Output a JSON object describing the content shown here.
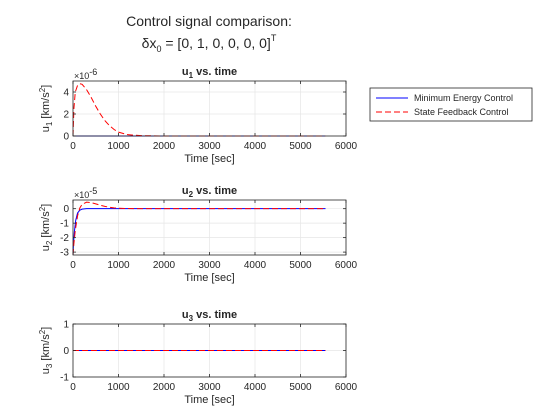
{
  "figure": {
    "title_line1": "Control signal comparison:",
    "title_line2_prefix": "δx",
    "title_line2_sub": "0",
    "title_line2_value": " = [0, 1, 0, 0, 0, 0]",
    "title_line2_sup": "T"
  },
  "legend": {
    "placement": "outside-right",
    "entries": [
      {
        "label": "Minimum Energy Control",
        "color": "#0000ff",
        "dash": "solid"
      },
      {
        "label": "State Feedback Control",
        "color": "#ff0000",
        "dash": "dashed"
      }
    ]
  },
  "chart_data": [
    {
      "type": "line",
      "title_main": "u",
      "title_sub": "1",
      "title_rest": " vs. time",
      "xlabel": "Time [sec]",
      "ylabel_main": "u",
      "ylabel_sub": "1",
      "ylabel_rest": " [km/s",
      "ylabel_sup": "2",
      "ylabel_end": "]",
      "exponent_label": "×10",
      "exponent_power": "-6",
      "xlim": [
        0,
        6000
      ],
      "ylim": [
        0,
        5e-06
      ],
      "xticks": [
        0,
        1000,
        2000,
        3000,
        4000,
        5000,
        6000
      ],
      "yticks": [
        0,
        2e-06,
        4e-06
      ],
      "ytick_labels": [
        "0",
        "2",
        "4"
      ],
      "grid": true,
      "series": [
        {
          "name": "Minimum Energy Control",
          "x": [
            0,
            100,
            500,
            1000,
            2000,
            3000,
            4000,
            5000,
            5550
          ],
          "y": [
            0,
            0,
            0,
            0,
            0,
            0,
            0,
            0,
            0
          ]
        },
        {
          "name": "State Feedback Control",
          "x": [
            0,
            20,
            50,
            100,
            150,
            200,
            300,
            400,
            500,
            600,
            700,
            800,
            900,
            1000,
            1200,
            1500,
            2000,
            3000,
            4000,
            5000,
            5550
          ],
          "y": [
            0,
            2.5e-06,
            4e-06,
            4.6e-06,
            4.75e-06,
            4.7e-06,
            4.2e-06,
            3.5e-06,
            2.7e-06,
            2e-06,
            1.4e-06,
            9.5e-07,
            6e-07,
            3.5e-07,
            1.2e-07,
            3e-08,
            0,
            0,
            0,
            0,
            0
          ]
        }
      ]
    },
    {
      "type": "line",
      "title_main": "u",
      "title_sub": "2",
      "title_rest": " vs. time",
      "xlabel": "Time [sec]",
      "ylabel_main": "u",
      "ylabel_sub": "2",
      "ylabel_rest": " [km/s",
      "ylabel_sup": "2",
      "ylabel_end": "]",
      "exponent_label": "×10",
      "exponent_power": "-5",
      "xlim": [
        0,
        6000
      ],
      "ylim": [
        -3.2e-05,
        6e-06
      ],
      "xticks": [
        0,
        1000,
        2000,
        3000,
        4000,
        5000,
        6000
      ],
      "yticks": [
        -3e-05,
        -2e-05,
        -1e-05,
        0
      ],
      "ytick_labels": [
        "-3",
        "-2",
        "-1",
        "0"
      ],
      "grid": true,
      "series": [
        {
          "name": "Minimum Energy Control",
          "x": [
            0,
            10,
            30,
            60,
            100,
            150,
            200,
            300,
            500,
            1000,
            2000,
            3000,
            4000,
            5000,
            5550
          ],
          "y": [
            -3.2e-05,
            -2.5e-05,
            -1.6e-05,
            -8e-06,
            -3e-06,
            -1e-06,
            -3e-07,
            0,
            0,
            0,
            0,
            0,
            0,
            0,
            0
          ]
        },
        {
          "name": "State Feedback Control",
          "x": [
            0,
            20,
            50,
            100,
            150,
            200,
            300,
            400,
            500,
            600,
            700,
            800,
            900,
            1000,
            1200,
            1500,
            2000,
            3000,
            4000,
            5000,
            5550
          ],
          "y": [
            -3.2e-05,
            -2.4e-05,
            -1.5e-05,
            -5e-06,
            5e-07,
            3e-06,
            4.5e-06,
            4.2e-06,
            3.3e-06,
            2.4e-06,
            1.6e-06,
            1e-06,
            6e-07,
            3e-07,
            1e-07,
            0,
            0,
            0,
            0,
            0,
            0
          ]
        }
      ]
    },
    {
      "type": "line",
      "title_main": "u",
      "title_sub": "3",
      "title_rest": " vs. time",
      "xlabel": "Time [sec]",
      "ylabel_main": "u",
      "ylabel_sub": "3",
      "ylabel_rest": " [km/s",
      "ylabel_sup": "2",
      "ylabel_end": "]",
      "exponent_label": "",
      "exponent_power": "",
      "xlim": [
        0,
        6000
      ],
      "ylim": [
        -1,
        1
      ],
      "xticks": [
        0,
        1000,
        2000,
        3000,
        4000,
        5000,
        6000
      ],
      "yticks": [
        -1,
        0,
        1
      ],
      "ytick_labels": [
        "-1",
        "0",
        "1"
      ],
      "grid": true,
      "series": [
        {
          "name": "Minimum Energy Control",
          "x": [
            0,
            5550
          ],
          "y": [
            0,
            0
          ]
        },
        {
          "name": "State Feedback Control",
          "x": [
            0,
            5550
          ],
          "y": [
            0,
            0
          ]
        }
      ]
    }
  ]
}
